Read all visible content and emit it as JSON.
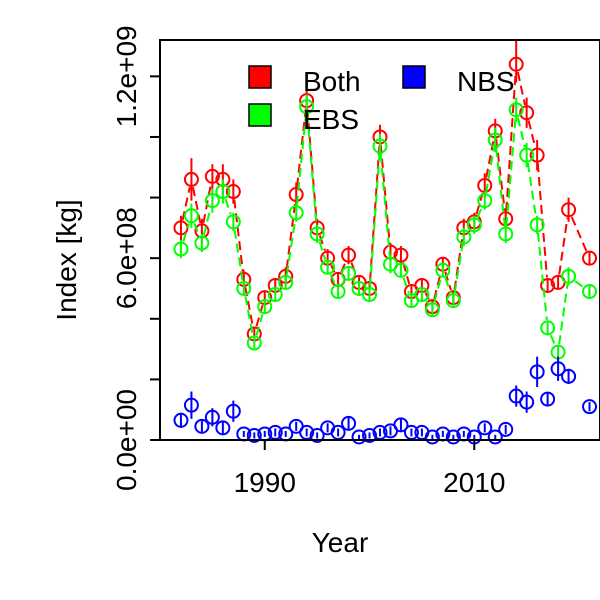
{
  "chart_data": {
    "type": "scatter",
    "xlabel": "Year",
    "ylabel": "Index [kg]",
    "xlim": [
      1980,
      2022
    ],
    "ylim": [
      0,
      1320000000
    ],
    "x_ticks": [
      {
        "value": 1990,
        "label": "1990"
      },
      {
        "value": 2010,
        "label": "2010"
      }
    ],
    "y_ticks": [
      {
        "value": 0,
        "label": "0.0e+00"
      },
      {
        "value": 200000000,
        "label": ""
      },
      {
        "value": 400000000,
        "label": ""
      },
      {
        "value": 600000000,
        "label": "6.0e+08"
      },
      {
        "value": 800000000,
        "label": ""
      },
      {
        "value": 1000000000,
        "label": ""
      },
      {
        "value": 1200000000,
        "label": "1.2e+09"
      }
    ],
    "legend": {
      "position": "top",
      "entries": [
        {
          "label": "Both",
          "color": "#ff0000"
        },
        {
          "label": "NBS",
          "color": "#0000ff"
        },
        {
          "label": "EBS",
          "color": "#00ff00"
        }
      ]
    },
    "series": [
      {
        "name": "Both",
        "color": "#ff0000",
        "points": [
          {
            "x": 1982,
            "y": 700000000,
            "lo": 660000000,
            "hi": 740000000
          },
          {
            "x": 1983,
            "y": 860000000,
            "lo": 790000000,
            "hi": 930000000
          },
          {
            "x": 1984,
            "y": 690000000,
            "lo": 650000000,
            "hi": 730000000
          },
          {
            "x": 1985,
            "y": 870000000,
            "lo": 820000000,
            "hi": 910000000
          },
          {
            "x": 1986,
            "y": 860000000,
            "lo": 810000000,
            "hi": 910000000
          },
          {
            "x": 1987,
            "y": 820000000,
            "lo": 780000000,
            "hi": 860000000
          },
          {
            "x": 1988,
            "y": 530000000,
            "lo": 500000000,
            "hi": 560000000
          },
          {
            "x": 1989,
            "y": 350000000,
            "lo": 330000000,
            "hi": 370000000
          },
          {
            "x": 1990,
            "y": 470000000,
            "lo": 450000000,
            "hi": 490000000
          },
          {
            "x": 1991,
            "y": 510000000,
            "lo": 490000000,
            "hi": 530000000
          },
          {
            "x": 1992,
            "y": 540000000,
            "lo": 510000000,
            "hi": 570000000
          },
          {
            "x": 1993,
            "y": 810000000,
            "lo": 770000000,
            "hi": 850000000
          },
          {
            "x": 1994,
            "y": 1120000000,
            "lo": 1080000000,
            "hi": 1160000000
          },
          {
            "x": 1995,
            "y": 700000000,
            "lo": 670000000,
            "hi": 730000000
          },
          {
            "x": 1996,
            "y": 600000000,
            "lo": 570000000,
            "hi": 630000000
          },
          {
            "x": 1997,
            "y": 530000000,
            "lo": 510000000,
            "hi": 550000000
          },
          {
            "x": 1998,
            "y": 610000000,
            "lo": 580000000,
            "hi": 640000000
          },
          {
            "x": 1999,
            "y": 520000000,
            "lo": 500000000,
            "hi": 540000000
          },
          {
            "x": 2000,
            "y": 500000000,
            "lo": 480000000,
            "hi": 520000000
          },
          {
            "x": 2001,
            "y": 1000000000,
            "lo": 960000000,
            "hi": 1040000000
          },
          {
            "x": 2002,
            "y": 620000000,
            "lo": 590000000,
            "hi": 650000000
          },
          {
            "x": 2003,
            "y": 610000000,
            "lo": 580000000,
            "hi": 640000000
          },
          {
            "x": 2004,
            "y": 490000000,
            "lo": 470000000,
            "hi": 510000000
          },
          {
            "x": 2005,
            "y": 510000000,
            "lo": 490000000,
            "hi": 530000000
          },
          {
            "x": 2006,
            "y": 440000000,
            "lo": 420000000,
            "hi": 460000000
          },
          {
            "x": 2007,
            "y": 580000000,
            "lo": 560000000,
            "hi": 600000000
          },
          {
            "x": 2008,
            "y": 470000000,
            "lo": 450000000,
            "hi": 490000000
          },
          {
            "x": 2009,
            "y": 700000000,
            "lo": 670000000,
            "hi": 730000000
          },
          {
            "x": 2010,
            "y": 720000000,
            "lo": 690000000,
            "hi": 750000000
          },
          {
            "x": 2011,
            "y": 840000000,
            "lo": 800000000,
            "hi": 880000000
          },
          {
            "x": 2012,
            "y": 1020000000,
            "lo": 980000000,
            "hi": 1060000000
          },
          {
            "x": 2013,
            "y": 730000000,
            "lo": 700000000,
            "hi": 760000000
          },
          {
            "x": 2014,
            "y": 1240000000,
            "lo": 1180000000,
            "hi": 1320000000
          },
          {
            "x": 2015,
            "y": 1080000000,
            "lo": 1030000000,
            "hi": 1130000000
          },
          {
            "x": 2016,
            "y": 940000000,
            "lo": 890000000,
            "hi": 990000000
          },
          {
            "x": 2017,
            "y": 510000000,
            "lo": 490000000,
            "hi": 530000000
          },
          {
            "x": 2018,
            "y": 520000000,
            "lo": 500000000,
            "hi": 540000000
          },
          {
            "x": 2019,
            "y": 760000000,
            "lo": 720000000,
            "hi": 800000000
          },
          {
            "x": 2021,
            "y": 600000000,
            "lo": 580000000,
            "hi": 620000000
          }
        ]
      },
      {
        "name": "EBS",
        "color": "#00ff00",
        "points": [
          {
            "x": 1982,
            "y": 630000000,
            "lo": 600000000,
            "hi": 660000000
          },
          {
            "x": 1983,
            "y": 740000000,
            "lo": 700000000,
            "hi": 780000000
          },
          {
            "x": 1984,
            "y": 650000000,
            "lo": 620000000,
            "hi": 680000000
          },
          {
            "x": 1985,
            "y": 790000000,
            "lo": 750000000,
            "hi": 830000000
          },
          {
            "x": 1986,
            "y": 820000000,
            "lo": 780000000,
            "hi": 860000000
          },
          {
            "x": 1987,
            "y": 720000000,
            "lo": 690000000,
            "hi": 750000000
          },
          {
            "x": 1988,
            "y": 500000000,
            "lo": 480000000,
            "hi": 520000000
          },
          {
            "x": 1989,
            "y": 320000000,
            "lo": 300000000,
            "hi": 340000000
          },
          {
            "x": 1990,
            "y": 440000000,
            "lo": 420000000,
            "hi": 460000000
          },
          {
            "x": 1991,
            "y": 480000000,
            "lo": 460000000,
            "hi": 500000000
          },
          {
            "x": 1992,
            "y": 520000000,
            "lo": 500000000,
            "hi": 540000000
          },
          {
            "x": 1993,
            "y": 750000000,
            "lo": 720000000,
            "hi": 780000000
          },
          {
            "x": 1994,
            "y": 1100000000,
            "lo": 1060000000,
            "hi": 1140000000
          },
          {
            "x": 1995,
            "y": 680000000,
            "lo": 650000000,
            "hi": 710000000
          },
          {
            "x": 1996,
            "y": 570000000,
            "lo": 550000000,
            "hi": 590000000
          },
          {
            "x": 1997,
            "y": 490000000,
            "lo": 470000000,
            "hi": 510000000
          },
          {
            "x": 1998,
            "y": 550000000,
            "lo": 530000000,
            "hi": 570000000
          },
          {
            "x": 1999,
            "y": 500000000,
            "lo": 480000000,
            "hi": 520000000
          },
          {
            "x": 2000,
            "y": 480000000,
            "lo": 460000000,
            "hi": 500000000
          },
          {
            "x": 2001,
            "y": 970000000,
            "lo": 930000000,
            "hi": 1010000000
          },
          {
            "x": 2002,
            "y": 580000000,
            "lo": 550000000,
            "hi": 610000000
          },
          {
            "x": 2003,
            "y": 560000000,
            "lo": 540000000,
            "hi": 580000000
          },
          {
            "x": 2004,
            "y": 460000000,
            "lo": 440000000,
            "hi": 480000000
          },
          {
            "x": 2005,
            "y": 480000000,
            "lo": 460000000,
            "hi": 500000000
          },
          {
            "x": 2006,
            "y": 430000000,
            "lo": 410000000,
            "hi": 450000000
          },
          {
            "x": 2007,
            "y": 560000000,
            "lo": 540000000,
            "hi": 580000000
          },
          {
            "x": 2008,
            "y": 460000000,
            "lo": 440000000,
            "hi": 480000000
          },
          {
            "x": 2009,
            "y": 670000000,
            "lo": 640000000,
            "hi": 700000000
          },
          {
            "x": 2010,
            "y": 710000000,
            "lo": 680000000,
            "hi": 740000000
          },
          {
            "x": 2011,
            "y": 790000000,
            "lo": 760000000,
            "hi": 820000000
          },
          {
            "x": 2012,
            "y": 990000000,
            "lo": 950000000,
            "hi": 1030000000
          },
          {
            "x": 2013,
            "y": 680000000,
            "lo": 650000000,
            "hi": 710000000
          },
          {
            "x": 2014,
            "y": 1090000000,
            "lo": 1050000000,
            "hi": 1130000000
          },
          {
            "x": 2015,
            "y": 940000000,
            "lo": 900000000,
            "hi": 980000000
          },
          {
            "x": 2016,
            "y": 710000000,
            "lo": 680000000,
            "hi": 740000000
          },
          {
            "x": 2017,
            "y": 370000000,
            "lo": 350000000,
            "hi": 390000000
          },
          {
            "x": 2018,
            "y": 290000000,
            "lo": 270000000,
            "hi": 310000000
          },
          {
            "x": 2019,
            "y": 540000000,
            "lo": 510000000,
            "hi": 570000000
          },
          {
            "x": 2021,
            "y": 490000000,
            "lo": 470000000,
            "hi": 510000000
          }
        ]
      },
      {
        "name": "NBS",
        "color": "#0000ff",
        "points": [
          {
            "x": 1982,
            "y": 65000000,
            "lo": 40000000,
            "hi": 90000000
          },
          {
            "x": 1983,
            "y": 115000000,
            "lo": 70000000,
            "hi": 160000000
          },
          {
            "x": 1984,
            "y": 45000000,
            "lo": 25000000,
            "hi": 65000000
          },
          {
            "x": 1985,
            "y": 75000000,
            "lo": 45000000,
            "hi": 105000000
          },
          {
            "x": 1986,
            "y": 40000000,
            "lo": 20000000,
            "hi": 60000000
          },
          {
            "x": 1987,
            "y": 95000000,
            "lo": 60000000,
            "hi": 130000000
          },
          {
            "x": 1988,
            "y": 20000000,
            "lo": 10000000,
            "hi": 30000000
          },
          {
            "x": 1989,
            "y": 15000000,
            "lo": 5000000,
            "hi": 25000000
          },
          {
            "x": 1990,
            "y": 20000000,
            "lo": 10000000,
            "hi": 30000000
          },
          {
            "x": 1991,
            "y": 25000000,
            "lo": 12000000,
            "hi": 38000000
          },
          {
            "x": 1992,
            "y": 20000000,
            "lo": 10000000,
            "hi": 30000000
          },
          {
            "x": 1993,
            "y": 45000000,
            "lo": 30000000,
            "hi": 60000000
          },
          {
            "x": 1994,
            "y": 25000000,
            "lo": 12000000,
            "hi": 38000000
          },
          {
            "x": 1995,
            "y": 15000000,
            "lo": 5000000,
            "hi": 25000000
          },
          {
            "x": 1996,
            "y": 40000000,
            "lo": 25000000,
            "hi": 55000000
          },
          {
            "x": 1997,
            "y": 25000000,
            "lo": 12000000,
            "hi": 38000000
          },
          {
            "x": 1998,
            "y": 55000000,
            "lo": 35000000,
            "hi": 75000000
          },
          {
            "x": 1999,
            "y": 10000000,
            "lo": 3000000,
            "hi": 17000000
          },
          {
            "x": 2000,
            "y": 15000000,
            "lo": 5000000,
            "hi": 25000000
          },
          {
            "x": 2001,
            "y": 25000000,
            "lo": 12000000,
            "hi": 38000000
          },
          {
            "x": 2002,
            "y": 30000000,
            "lo": 15000000,
            "hi": 45000000
          },
          {
            "x": 2003,
            "y": 50000000,
            "lo": 30000000,
            "hi": 70000000
          },
          {
            "x": 2004,
            "y": 25000000,
            "lo": 12000000,
            "hi": 38000000
          },
          {
            "x": 2005,
            "y": 25000000,
            "lo": 12000000,
            "hi": 38000000
          },
          {
            "x": 2006,
            "y": 10000000,
            "lo": 3000000,
            "hi": 17000000
          },
          {
            "x": 2007,
            "y": 20000000,
            "lo": 10000000,
            "hi": 30000000
          },
          {
            "x": 2008,
            "y": 10000000,
            "lo": 3000000,
            "hi": 17000000
          },
          {
            "x": 2009,
            "y": 20000000,
            "lo": 10000000,
            "hi": 30000000
          },
          {
            "x": 2010,
            "y": 10000000,
            "lo": 3000000,
            "hi": 17000000
          },
          {
            "x": 2011,
            "y": 40000000,
            "lo": 25000000,
            "hi": 55000000
          },
          {
            "x": 2012,
            "y": 10000000,
            "lo": 3000000,
            "hi": 17000000
          },
          {
            "x": 2013,
            "y": 35000000,
            "lo": 20000000,
            "hi": 50000000
          },
          {
            "x": 2014,
            "y": 145000000,
            "lo": 110000000,
            "hi": 180000000
          },
          {
            "x": 2015,
            "y": 125000000,
            "lo": 90000000,
            "hi": 160000000
          },
          {
            "x": 2016,
            "y": 225000000,
            "lo": 175000000,
            "hi": 275000000
          },
          {
            "x": 2017,
            "y": 135000000,
            "lo": 115000000,
            "hi": 155000000
          },
          {
            "x": 2018,
            "y": 235000000,
            "lo": 195000000,
            "hi": 275000000
          },
          {
            "x": 2019,
            "y": 210000000,
            "lo": 185000000,
            "hi": 235000000
          },
          {
            "x": 2021,
            "y": 110000000,
            "lo": 95000000,
            "hi": 125000000
          }
        ]
      }
    ]
  }
}
